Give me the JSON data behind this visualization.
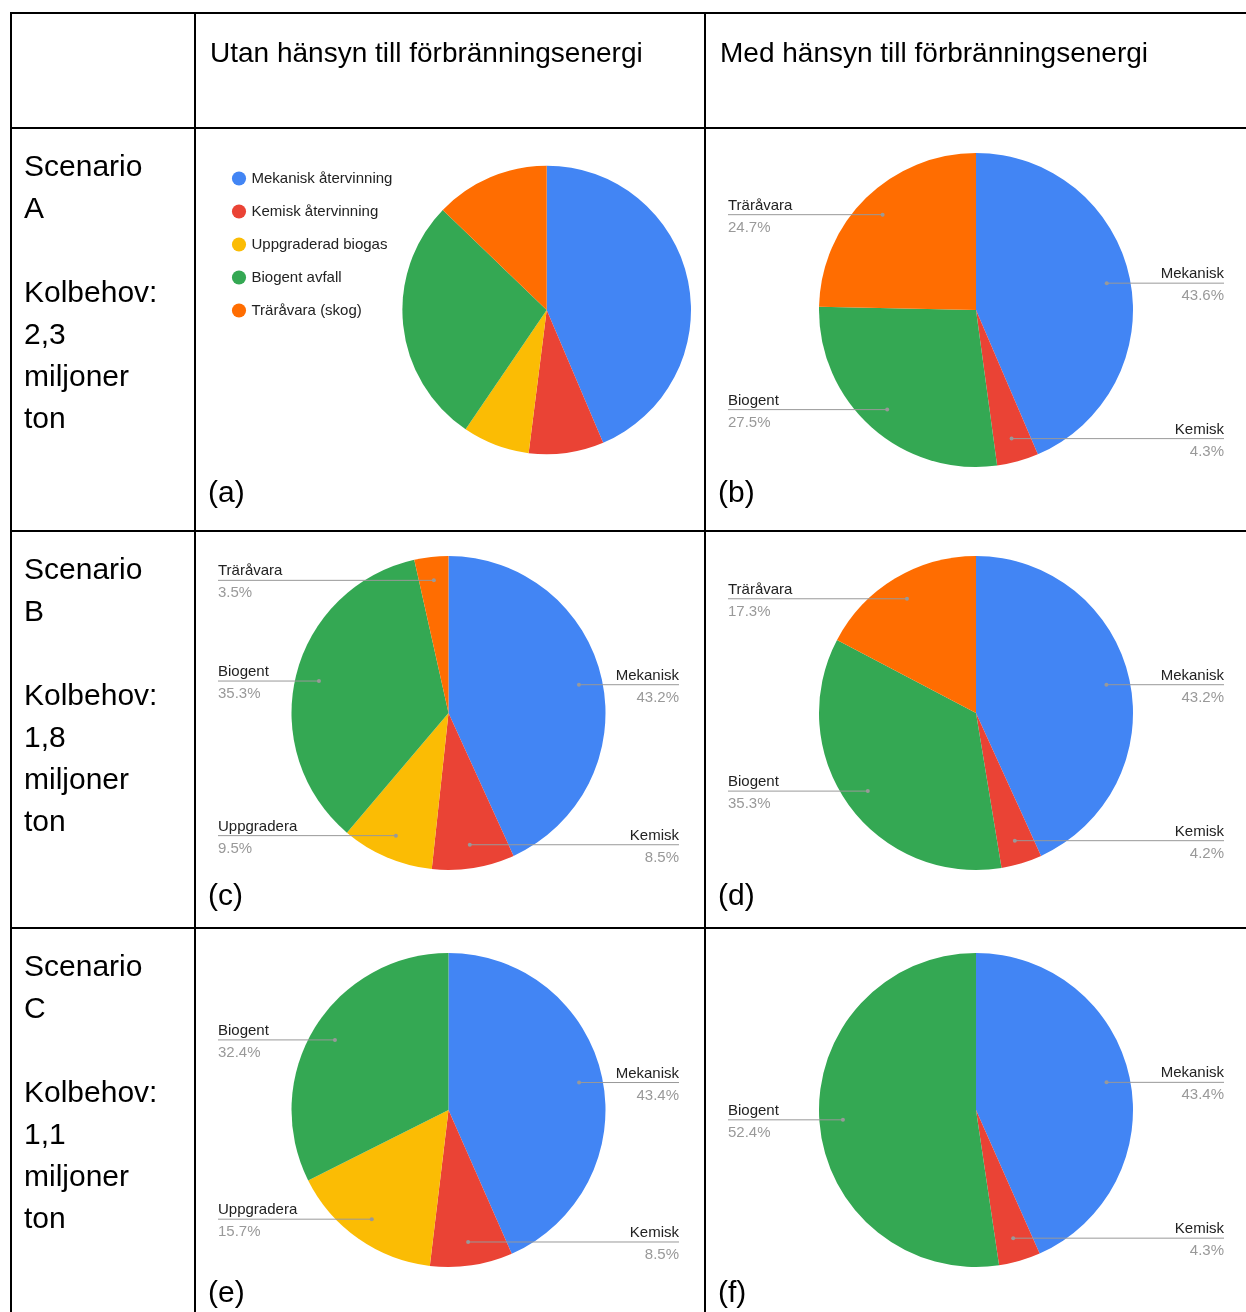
{
  "chart_data": [
    {
      "type": "other",
      "title": "Utan hänsyn till förbränningsenergi"
    },
    {
      "type": "other",
      "title": "Med hänsyn till förbränningsenergi"
    },
    {
      "type": "other",
      "title": "Scenario A",
      "annotations": [
        "Kolbehov: 2,3 miljoner ton"
      ]
    },
    {
      "type": "pie",
      "categories": [
        "Mekanisk återvinning",
        "Kemisk återvinning",
        "Uppgraderad biogas",
        "Biogent avfall",
        "Träråvara (skog)"
      ],
      "values": [
        43.6,
        8.4,
        7.5,
        27.7,
        12.8
      ],
      "colors": [
        "#4285f4",
        "#ea4335",
        "#fbbc04",
        "#34a853",
        "#ff6d01"
      ],
      "legend": "left",
      "annotations": [
        "(a)"
      ]
    },
    {
      "type": "pie",
      "categories": [
        "Mekanisk",
        "Kemisk",
        "Biogent",
        "Träråvara"
      ],
      "values": [
        43.6,
        4.3,
        27.5,
        24.7
      ],
      "value_labels": [
        "43.6%",
        "4.3%",
        "27.5%",
        "24.7%"
      ],
      "colors": [
        "#4285f4",
        "#ea4335",
        "#34a853",
        "#ff6d01"
      ],
      "annotations": [
        "(b)"
      ]
    },
    {
      "type": "other",
      "title": "Scenario B",
      "annotations": [
        "Kolbehov: 1,8 miljoner ton"
      ]
    },
    {
      "type": "pie",
      "categories": [
        "Mekanisk",
        "Kemisk",
        "Uppgradera",
        "Biogent",
        "Träråvara"
      ],
      "values": [
        43.2,
        8.5,
        9.5,
        35.3,
        3.5
      ],
      "value_labels": [
        "43.2%",
        "8.5%",
        "9.5%",
        "35.3%",
        "3.5%"
      ],
      "colors": [
        "#4285f4",
        "#ea4335",
        "#fbbc04",
        "#34a853",
        "#ff6d01"
      ],
      "annotations": [
        "(c)"
      ]
    },
    {
      "type": "pie",
      "categories": [
        "Mekanisk",
        "Kemisk",
        "Biogent",
        "Träråvara"
      ],
      "values": [
        43.2,
        4.2,
        35.3,
        17.3
      ],
      "value_labels": [
        "43.2%",
        "4.2%",
        "35.3%",
        "17.3%"
      ],
      "colors": [
        "#4285f4",
        "#ea4335",
        "#34a853",
        "#ff6d01"
      ],
      "annotations": [
        "(d)"
      ]
    },
    {
      "type": "other",
      "title": "Scenario C",
      "annotations": [
        "Kolbehov: 1,1 miljoner ton"
      ]
    },
    {
      "type": "pie",
      "categories": [
        "Mekanisk",
        "Kemisk",
        "Uppgradera",
        "Biogent"
      ],
      "values": [
        43.4,
        8.5,
        15.7,
        32.4
      ],
      "value_labels": [
        "43.4%",
        "8.5%",
        "15.7%",
        "32.4%"
      ],
      "colors": [
        "#4285f4",
        "#ea4335",
        "#fbbc04",
        "#34a853"
      ],
      "annotations": [
        "(e)"
      ]
    },
    {
      "type": "pie",
      "categories": [
        "Mekanisk",
        "Kemisk",
        "Biogent"
      ],
      "values": [
        43.4,
        4.3,
        52.4
      ],
      "value_labels": [
        "43.4%",
        "4.3%",
        "52.4%"
      ],
      "colors": [
        "#4285f4",
        "#ea4335",
        "#34a853"
      ],
      "annotations": [
        "(f)"
      ]
    }
  ]
}
